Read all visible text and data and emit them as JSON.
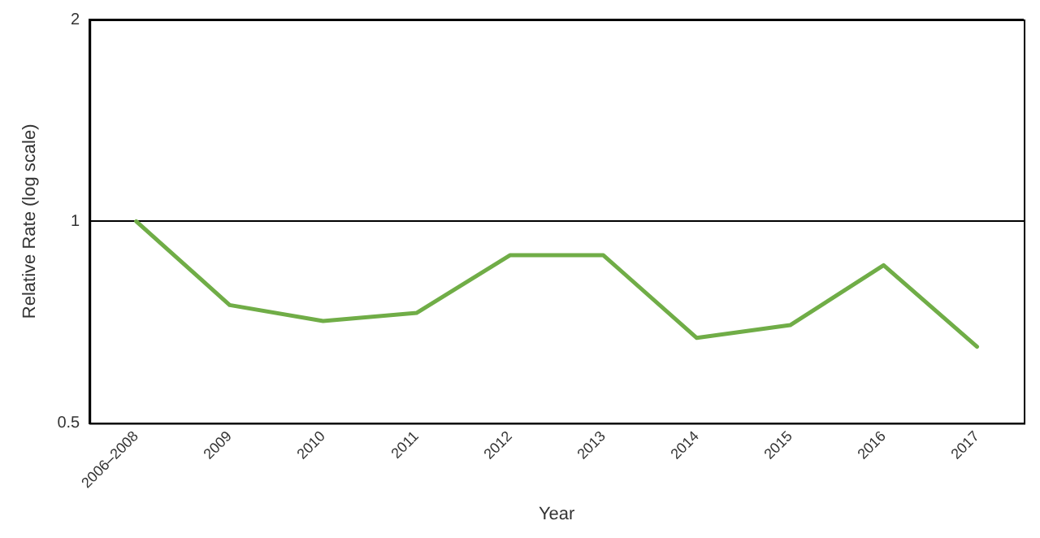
{
  "chart_data": {
    "type": "line",
    "xlabel": "Year",
    "ylabel": "Relative Rate (log scale)",
    "categories": [
      "2006–2008",
      "2009",
      "2010",
      "2011",
      "2012",
      "2013",
      "2014",
      "2015",
      "2016",
      "2017"
    ],
    "series": [
      {
        "color": "#70ad47",
        "values": [
          1.0,
          0.75,
          0.71,
          0.73,
          0.89,
          0.89,
          0.67,
          0.7,
          0.86,
          0.65
        ]
      }
    ],
    "log": "y",
    "ylim": [
      0.5,
      2
    ],
    "yticks": [
      0.5,
      1,
      2
    ],
    "grid": "y",
    "legend": false,
    "marker": "none",
    "line_style": "solid"
  }
}
